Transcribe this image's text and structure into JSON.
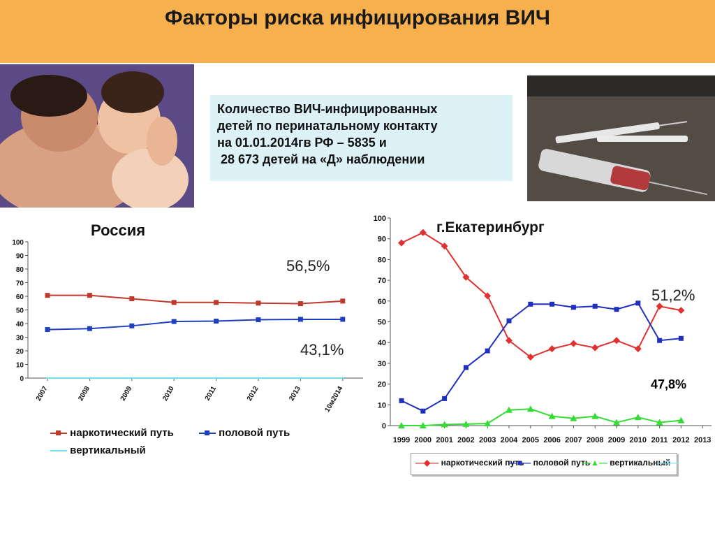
{
  "header": {
    "title": "Факторы риска инфицирования ВИЧ"
  },
  "info": {
    "lines": [
      "Количество ВИЧ-инфицированных",
      "детей по перинатальному контакту",
      "на 01.01.2014гв РФ – 5835 и",
      " 28 673 детей на «Д» наблюдении"
    ]
  },
  "colors": {
    "header": "#f6b04e",
    "info_box": "#dcf2f7"
  },
  "chart_data": [
    {
      "type": "line",
      "title": "Россия",
      "categories": [
        "2007",
        "2008",
        "2009",
        "2010",
        "2011",
        "2012",
        "2013",
        "10м2014"
      ],
      "ylim": [
        0,
        100
      ],
      "yticks": [
        0,
        10,
        20,
        30,
        40,
        50,
        60,
        70,
        80,
        90,
        100
      ],
      "series": [
        {
          "name": "наркотический путь",
          "color": "#c0392b",
          "values": [
            60.7,
            60.7,
            58.2,
            55.5,
            55.5,
            55.0,
            54.6,
            56.5
          ]
        },
        {
          "name": "половой путь",
          "color": "#1f3fbf",
          "values": [
            35.6,
            36.3,
            38.3,
            41.5,
            41.8,
            42.8,
            43.1,
            43.1
          ]
        },
        {
          "name": "вертикальный",
          "color": "#6fe0f0",
          "values": [
            0,
            0,
            0,
            0,
            0,
            0,
            0,
            0
          ]
        }
      ],
      "annotations": [
        "56,5%",
        "43,1%"
      ],
      "legend": "bottom"
    },
    {
      "type": "line",
      "title": "г.Екатеринбург",
      "categories": [
        "1999",
        "2000",
        "2001",
        "2002",
        "2003",
        "2004",
        "2005",
        "2006",
        "2007",
        "2008",
        "2009",
        "2010",
        "2011",
        "2012",
        "2013"
      ],
      "ylim": [
        0,
        100
      ],
      "yticks": [
        0,
        10,
        20,
        30,
        40,
        50,
        60,
        70,
        80,
        90,
        100
      ],
      "series": [
        {
          "name": "наркотический путь",
          "color": "#e03030",
          "values": [
            88,
            93,
            86.5,
            71.5,
            62.5,
            41,
            33,
            37,
            39.5,
            37.5,
            41,
            37,
            57.5,
            55.5,
            null
          ]
        },
        {
          "name": "половой путь",
          "color": "#1f2fbf",
          "values": [
            12,
            7,
            13,
            28,
            36,
            50.5,
            58.5,
            58.5,
            57,
            57.5,
            56,
            59,
            41,
            42,
            null
          ]
        },
        {
          "name": "вертикальный",
          "color": "#33dd33",
          "values": [
            0,
            0,
            0.5,
            0.7,
            1,
            7.5,
            8,
            4.5,
            3.5,
            4.5,
            1.5,
            4,
            1.5,
            2.5,
            null
          ]
        },
        {
          "name": "",
          "color": "#7fe5f2",
          "values": [
            null,
            null,
            null,
            null,
            null,
            null,
            null,
            null,
            null,
            null,
            null,
            null,
            null,
            null,
            null
          ]
        }
      ],
      "annotations": [
        "51,2%",
        "47,8%"
      ],
      "legend": "bottom"
    }
  ]
}
